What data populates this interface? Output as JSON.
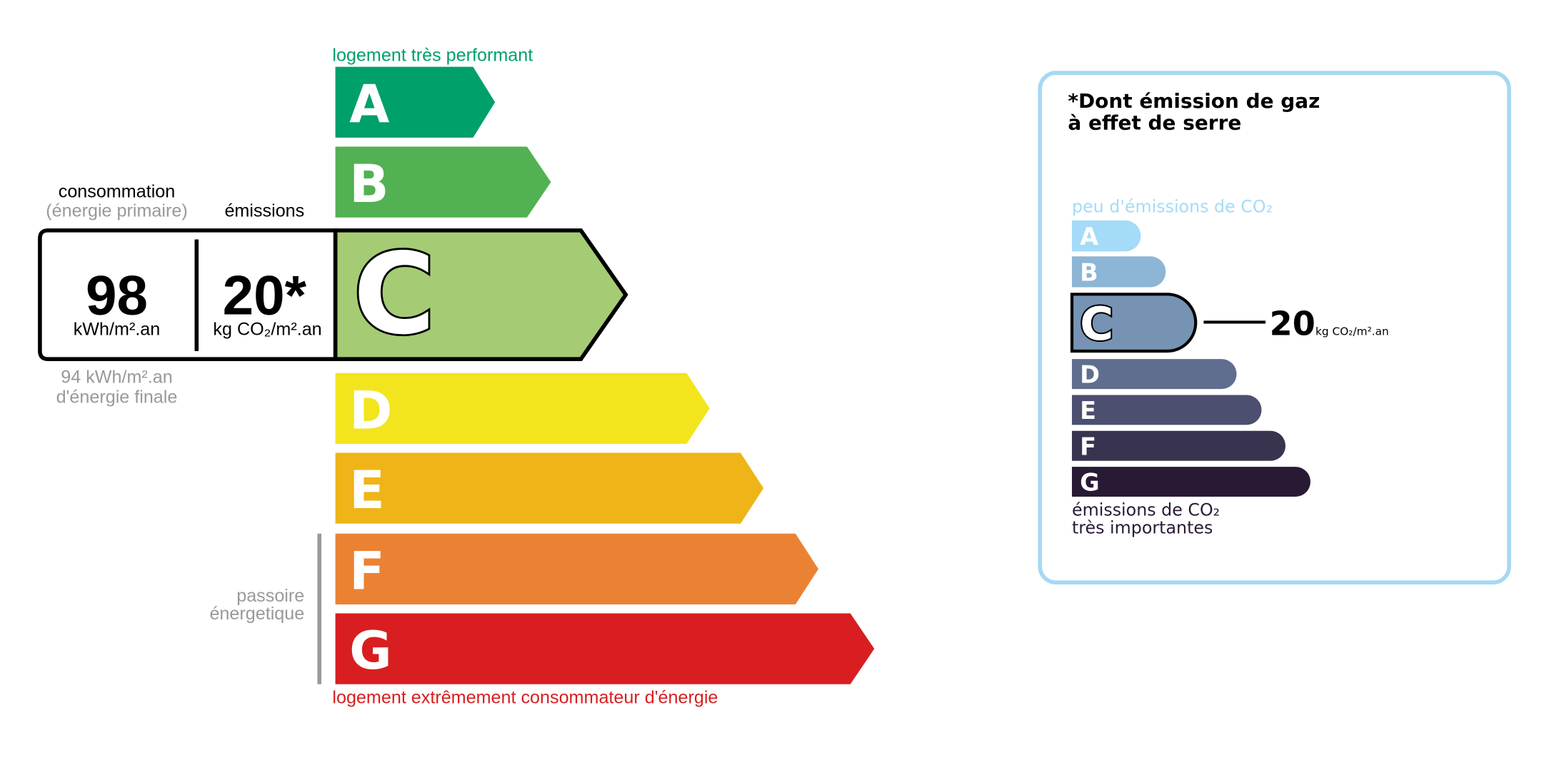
{
  "energy": {
    "top_label": "logement très performant",
    "bottom_label": "logement extrêmement consommateur d'énergie",
    "current_class": "C",
    "classes": [
      {
        "letter": "A",
        "color": "#00a06a"
      },
      {
        "letter": "B",
        "color": "#52b153"
      },
      {
        "letter": "C",
        "color": "#a5cc74"
      },
      {
        "letter": "D",
        "color": "#f2e51e"
      },
      {
        "letter": "E",
        "color": "#efb518"
      },
      {
        "letter": "F",
        "color": "#eb8233"
      },
      {
        "letter": "G",
        "color": "#d81e20"
      }
    ],
    "consumption_title": "consommation",
    "consumption_subtitle": "(énergie primaire)",
    "emissions_title": "émissions",
    "consumption_value": "98",
    "consumption_unit": "kWh/m².an",
    "emissions_value": "20*",
    "emissions_unit": "kg CO₂/m².an",
    "final_energy_value": "94 kWh/m².an",
    "final_energy_label": "d'énergie finale",
    "passoire_line1": "passoire",
    "passoire_line2": "énergetique"
  },
  "ghg": {
    "title_line1": "*Dont émission de gaz",
    "title_line2": "à effet de serre",
    "top_label": "peu d'émissions de CO₂",
    "bottom_line1": "émissions de CO₂",
    "bottom_line2": "très importantes",
    "current_class": "C",
    "value": "20",
    "unit": "kg CO₂/m².an",
    "border_color": "#a5d8f3",
    "classes": [
      {
        "letter": "A",
        "color": "#a4dbf8"
      },
      {
        "letter": "B",
        "color": "#8db5d5"
      },
      {
        "letter": "C",
        "color": "#7693b3"
      },
      {
        "letter": "D",
        "color": "#5f6e8f"
      },
      {
        "letter": "E",
        "color": "#4c4f6f"
      },
      {
        "letter": "F",
        "color": "#383450"
      },
      {
        "letter": "G",
        "color": "#281a35"
      }
    ]
  }
}
